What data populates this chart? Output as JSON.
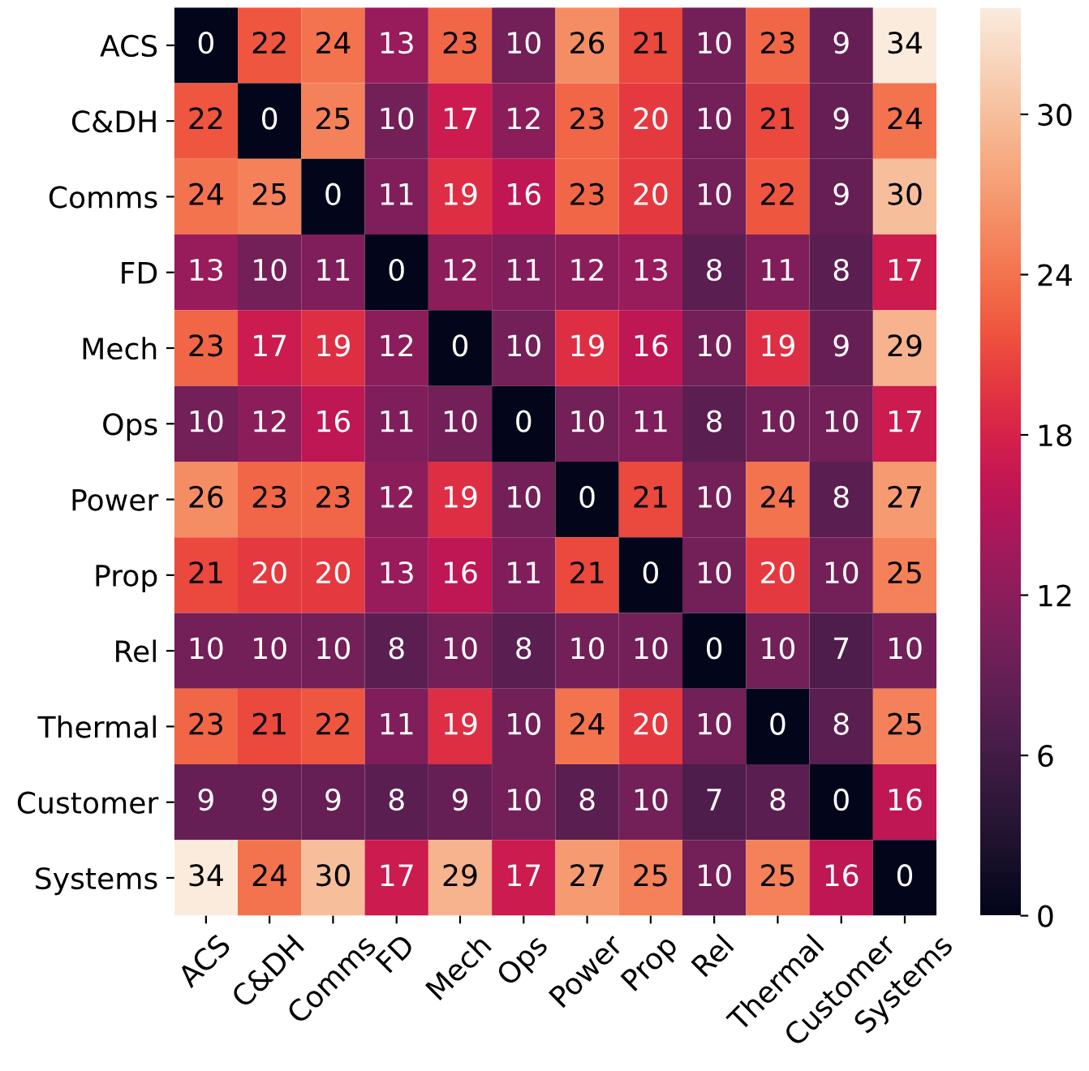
{
  "chart_data": {
    "type": "heatmap",
    "categories": [
      "ACS",
      "C&DH",
      "Comms",
      "FD",
      "Mech",
      "Ops",
      "Power",
      "Prop",
      "Rel",
      "Thermal",
      "Customer",
      "Systems"
    ],
    "y_categories": [
      "ACS",
      "C&DH",
      "Comms",
      "FD",
      "Mech",
      "Ops",
      "Power",
      "Prop",
      "Rel",
      "Thermal",
      "Customer",
      "Systems"
    ],
    "cells": [
      [
        0,
        22,
        24,
        13,
        23,
        10,
        26,
        21,
        10,
        23,
        9,
        34
      ],
      [
        22,
        0,
        25,
        10,
        17,
        12,
        23,
        20,
        10,
        21,
        9,
        24
      ],
      [
        24,
        25,
        0,
        11,
        19,
        16,
        23,
        20,
        10,
        22,
        9,
        30
      ],
      [
        13,
        10,
        11,
        0,
        12,
        11,
        12,
        13,
        8,
        11,
        8,
        17
      ],
      [
        23,
        17,
        19,
        12,
        0,
        10,
        19,
        16,
        10,
        19,
        9,
        29
      ],
      [
        10,
        12,
        16,
        11,
        10,
        0,
        10,
        11,
        8,
        10,
        10,
        17
      ],
      [
        26,
        23,
        23,
        12,
        19,
        10,
        0,
        21,
        10,
        24,
        8,
        27
      ],
      [
        21,
        20,
        20,
        13,
        16,
        11,
        21,
        0,
        10,
        20,
        10,
        25
      ],
      [
        10,
        10,
        10,
        8,
        10,
        8,
        10,
        10,
        0,
        10,
        7,
        10
      ],
      [
        23,
        21,
        22,
        11,
        19,
        10,
        24,
        20,
        10,
        0,
        8,
        25
      ],
      [
        9,
        9,
        9,
        8,
        9,
        10,
        8,
        10,
        7,
        8,
        0,
        16
      ],
      [
        34,
        24,
        30,
        17,
        29,
        17,
        27,
        25,
        10,
        25,
        16,
        0
      ]
    ],
    "clim": [
      0,
      34
    ],
    "cticks": [
      0,
      6,
      12,
      18,
      24,
      30
    ],
    "data_labels": true
  }
}
